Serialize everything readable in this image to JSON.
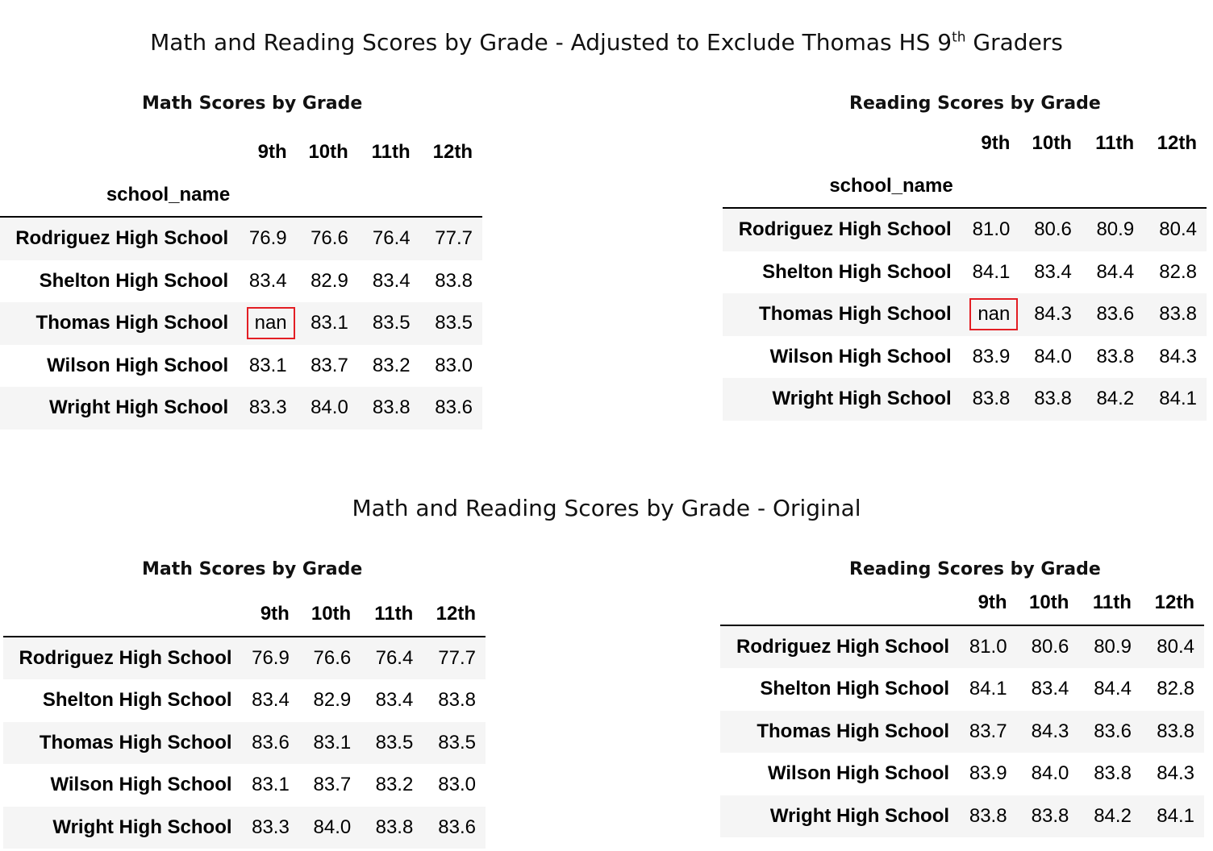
{
  "sections": [
    {
      "title": "Math and Reading Scores by Grade - Adjusted to Exclude Thomas HS 9",
      "title_sup": "th",
      "title_tail": " Graders",
      "math": {
        "caption": "Math Scores by Grade",
        "index_name": "school_name",
        "columns": [
          "9th",
          "10th",
          "11th",
          "12th"
        ],
        "rows": [
          {
            "school": "Rodriguez High School",
            "values": [
              "76.9",
              "76.6",
              "76.4",
              "77.7"
            ]
          },
          {
            "school": "Shelton High School",
            "values": [
              "83.4",
              "82.9",
              "83.4",
              "83.8"
            ]
          },
          {
            "school": "Thomas High School",
            "values": [
              "nan",
              "83.1",
              "83.5",
              "83.5"
            ]
          },
          {
            "school": "Wilson High School",
            "values": [
              "83.1",
              "83.7",
              "83.2",
              "83.0"
            ]
          },
          {
            "school": "Wright High School",
            "values": [
              "83.3",
              "84.0",
              "83.8",
              "83.6"
            ]
          }
        ]
      },
      "reading": {
        "caption": "Reading Scores by Grade",
        "index_name": "school_name",
        "columns": [
          "9th",
          "10th",
          "11th",
          "12th"
        ],
        "rows": [
          {
            "school": "Rodriguez High School",
            "values": [
              "81.0",
              "80.6",
              "80.9",
              "80.4"
            ]
          },
          {
            "school": "Shelton High School",
            "values": [
              "84.1",
              "83.4",
              "84.4",
              "82.8"
            ]
          },
          {
            "school": "Thomas High School",
            "values": [
              "nan",
              "84.3",
              "83.6",
              "83.8"
            ]
          },
          {
            "school": "Wilson High School",
            "values": [
              "83.9",
              "84.0",
              "83.8",
              "84.3"
            ]
          },
          {
            "school": "Wright High School",
            "values": [
              "83.8",
              "83.8",
              "84.2",
              "84.1"
            ]
          }
        ]
      }
    },
    {
      "title": "Math and Reading Scores by Grade - Original",
      "math": {
        "caption": "Math Scores by Grade",
        "columns": [
          "9th",
          "10th",
          "11th",
          "12th"
        ],
        "rows": [
          {
            "school": "Rodriguez High School",
            "values": [
              "76.9",
              "76.6",
              "76.4",
              "77.7"
            ]
          },
          {
            "school": "Shelton High School",
            "values": [
              "83.4",
              "82.9",
              "83.4",
              "83.8"
            ]
          },
          {
            "school": "Thomas High School",
            "values": [
              "83.6",
              "83.1",
              "83.5",
              "83.5"
            ]
          },
          {
            "school": "Wilson High School",
            "values": [
              "83.1",
              "83.7",
              "83.2",
              "83.0"
            ]
          },
          {
            "school": "Wright High School",
            "values": [
              "83.3",
              "84.0",
              "83.8",
              "83.6"
            ]
          }
        ]
      },
      "reading": {
        "caption": "Reading Scores by Grade",
        "columns": [
          "9th",
          "10th",
          "11th",
          "12th"
        ],
        "rows": [
          {
            "school": "Rodriguez High School",
            "values": [
              "81.0",
              "80.6",
              "80.9",
              "80.4"
            ]
          },
          {
            "school": "Shelton High School",
            "values": [
              "84.1",
              "83.4",
              "84.4",
              "82.8"
            ]
          },
          {
            "school": "Thomas High School",
            "values": [
              "83.7",
              "84.3",
              "83.6",
              "83.8"
            ]
          },
          {
            "school": "Wilson High School",
            "values": [
              "83.9",
              "84.0",
              "83.8",
              "84.3"
            ]
          },
          {
            "school": "Wright High School",
            "values": [
              "83.8",
              "83.8",
              "84.2",
              "84.1"
            ]
          }
        ]
      }
    }
  ],
  "highlight_color": "#e31e24"
}
